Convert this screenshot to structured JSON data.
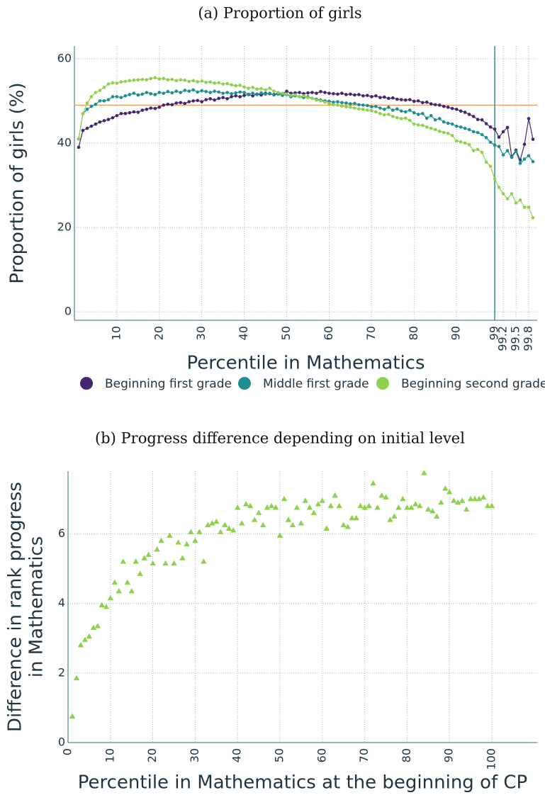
{
  "chart_data": [
    {
      "type": "line",
      "title": "(a) Proportion of girls",
      "xlabel": "Percentile in Mathematics",
      "ylabel": "Proportion of girls (%)",
      "x": [
        1,
        2,
        3,
        4,
        5,
        6,
        7,
        8,
        9,
        10,
        11,
        12,
        13,
        14,
        15,
        16,
        17,
        18,
        19,
        20,
        21,
        22,
        23,
        24,
        25,
        26,
        27,
        28,
        29,
        30,
        31,
        32,
        33,
        34,
        35,
        36,
        37,
        38,
        39,
        40,
        41,
        42,
        43,
        44,
        45,
        46,
        47,
        48,
        49,
        50,
        51,
        52,
        53,
        54,
        55,
        56,
        57,
        58,
        59,
        60,
        61,
        62,
        63,
        64,
        65,
        66,
        67,
        68,
        69,
        70,
        71,
        72,
        73,
        74,
        75,
        76,
        77,
        78,
        79,
        80,
        81,
        82,
        83,
        84,
        85,
        86,
        87,
        88,
        89,
        90,
        91,
        92,
        93,
        94,
        95,
        96,
        97,
        98,
        99,
        99.1,
        99.2,
        99.3,
        99.4,
        99.5,
        99.6,
        99.7,
        99.8,
        99.9
      ],
      "series": [
        {
          "name": "Beginning first grade",
          "color": "#46266e",
          "values": [
            39,
            43,
            43.5,
            44,
            44.5,
            45,
            45.3,
            45.6,
            46,
            46.5,
            47,
            47,
            47.2,
            47.4,
            47.3,
            47.8,
            48,
            48.3,
            48.2,
            48.5,
            49,
            49.2,
            49.1,
            49.5,
            49.6,
            49.4,
            49.8,
            50,
            50.1,
            49.8,
            50.3,
            50.5,
            50.2,
            50.6,
            50.8,
            50.5,
            51,
            51.2,
            51,
            51.3,
            51.5,
            51.2,
            51.6,
            51.4,
            51.8,
            51.7,
            51.5,
            51.9,
            51.6,
            52.3,
            51.8,
            51.9,
            52,
            51.7,
            51.9,
            52,
            51.8,
            52.2,
            52,
            51.8,
            51.7,
            51.6,
            51.8,
            51.5,
            51.6,
            51.4,
            51.5,
            51.2,
            51.3,
            51,
            51.2,
            50.8,
            50.9,
            50.6,
            50.7,
            50.4,
            50.3,
            50.2,
            50.3,
            49.9,
            50,
            49.6,
            49.7,
            49.3,
            49.1,
            49,
            48.7,
            48.5,
            48.2,
            48,
            47.6,
            47.3,
            46.8,
            46.3,
            45.6,
            45.5,
            44.6,
            43.8,
            43.3,
            41.4,
            42.7,
            43.7,
            36.8,
            38.3,
            36,
            39.7,
            45.8,
            40.9
          ]
        },
        {
          "name": "Middle first grade",
          "color": "#1e8f91",
          "values": [
            41,
            47,
            48,
            48.7,
            49.2,
            50,
            50,
            50.3,
            51,
            51,
            50.8,
            51.2,
            51.5,
            51.8,
            51.4,
            51.6,
            52,
            51.7,
            51.5,
            52,
            51.8,
            52.2,
            51.9,
            52.3,
            52,
            52.5,
            52.3,
            52.6,
            52.1,
            52.4,
            52.2,
            52,
            52.3,
            52.1,
            51.8,
            52,
            51.7,
            51.9,
            52.1,
            52,
            51.6,
            51.8,
            51.5,
            51.9,
            51.6,
            51.8,
            51.4,
            51.6,
            51.3,
            51.5,
            51,
            51.2,
            51,
            50.8,
            51,
            50.6,
            50.4,
            50.2,
            50,
            49.9,
            49.7,
            49.8,
            49.6,
            49.5,
            49.3,
            49.4,
            49.1,
            49,
            48.9,
            48.6,
            48.7,
            48.3,
            48,
            48.5,
            47.8,
            48.1,
            47.6,
            47.4,
            47.8,
            47.2,
            46.8,
            47,
            45.9,
            46.5,
            45.5,
            45.8,
            45,
            44.7,
            44.5,
            44,
            43.8,
            43.5,
            43.2,
            42.7,
            42.5,
            42,
            41.3,
            40.2,
            39.5,
            39.2,
            37.2,
            38.2,
            36.6,
            38,
            35.2,
            36.2,
            37,
            35.6
          ]
        },
        {
          "name": "Beginning second grade",
          "color": "#8fd14f",
          "values": [
            41,
            47,
            49.5,
            51,
            52,
            52.5,
            53.2,
            54,
            54.3,
            54.2,
            54.5,
            54.6,
            54.8,
            54.9,
            55,
            55.1,
            55,
            55.3,
            55.5,
            55.2,
            55.3,
            55,
            55.1,
            54.8,
            55,
            54.9,
            54.6,
            54.8,
            54.5,
            54.7,
            54.4,
            54.5,
            54.2,
            54.3,
            54,
            54.1,
            53.8,
            53.6,
            53.7,
            53.3,
            53,
            53.2,
            52.8,
            52.9,
            52.6,
            53,
            52.3,
            52,
            51.8,
            51.6,
            51.3,
            51.4,
            51,
            51.2,
            50.8,
            50.6,
            50.2,
            50,
            49.7,
            49.4,
            49.1,
            49,
            48.8,
            48.6,
            48.5,
            48.3,
            48.1,
            48,
            47.8,
            47.7,
            47.4,
            47,
            46.7,
            46.8,
            46.3,
            46,
            45.8,
            45.9,
            45.4,
            44.5,
            44.3,
            44.2,
            43.8,
            43.5,
            43.2,
            42.8,
            42.5,
            42.3,
            41.8,
            40.5,
            40.3,
            40,
            39.6,
            38.2,
            38.5,
            37.8,
            35.5,
            34.5,
            31.5,
            29.5,
            28,
            26.8,
            28,
            25.8,
            26.5,
            24.8,
            24.8,
            22.3
          ]
        }
      ],
      "xlim": [
        0,
        100
      ],
      "ylim": [
        -2,
        63
      ],
      "xticks": [
        10,
        20,
        30,
        40,
        50,
        60,
        70,
        80,
        90,
        99,
        99.2,
        99.5,
        99.8
      ],
      "yticks": [
        0,
        20,
        40,
        60
      ],
      "hline": 49,
      "hline_color": "#ef9a5a",
      "vline": 99,
      "vline_color": "#1f7a7c",
      "grid": true,
      "legend": "bottom"
    },
    {
      "type": "scatter",
      "title": "(b) Progress difference depending on initial level",
      "xlabel": "Percentile in Mathematics at the beginning of CP",
      "ylabel": [
        "Difference in rank progress",
        "in Mathematics"
      ],
      "marker": "triangle",
      "color": "#8fd14f",
      "x": [
        1,
        2,
        3,
        4,
        5,
        6,
        7,
        8,
        9,
        10,
        11,
        12,
        13,
        14,
        15,
        16,
        17,
        18,
        19,
        20,
        21,
        22,
        23,
        24,
        25,
        26,
        27,
        28,
        29,
        30,
        31,
        32,
        33,
        34,
        35,
        36,
        37,
        38,
        39,
        40,
        41,
        42,
        43,
        44,
        45,
        46,
        47,
        48,
        49,
        50,
        51,
        52,
        53,
        54,
        55,
        56,
        57,
        58,
        59,
        60,
        61,
        62,
        63,
        64,
        65,
        66,
        67,
        68,
        69,
        70,
        71,
        72,
        73,
        74,
        75,
        76,
        77,
        78,
        79,
        80,
        81,
        82,
        83,
        84,
        85,
        86,
        87,
        88,
        89,
        90,
        91,
        92,
        93,
        94,
        95,
        96,
        97,
        98,
        99,
        100
      ],
      "values": [
        0.75,
        1.85,
        2.8,
        2.95,
        3.05,
        3.3,
        3.35,
        3.95,
        3.9,
        4.15,
        4.6,
        4.35,
        5.2,
        4.6,
        4.35,
        5.2,
        4.85,
        5.3,
        5.4,
        5.15,
        5.55,
        5.8,
        5.15,
        5.95,
        5.15,
        5.75,
        5.3,
        5.7,
        6.05,
        5.8,
        6.05,
        5.2,
        6.25,
        6.3,
        6.35,
        6.05,
        6.25,
        6.15,
        6.1,
        6.75,
        6.3,
        6.85,
        6.8,
        6.4,
        6.6,
        6.25,
        6.75,
        6.8,
        6.75,
        5.95,
        7.0,
        6.4,
        6.25,
        6.75,
        6.3,
        6.95,
        6.75,
        6.6,
        6.85,
        6.95,
        6.15,
        6.8,
        7.1,
        6.8,
        6.25,
        6.2,
        6.45,
        6.45,
        6.8,
        6.75,
        6.8,
        7.45,
        6.75,
        7.1,
        7.05,
        6.4,
        6.5,
        6.75,
        7.0,
        6.75,
        6.75,
        6.85,
        6.8,
        7.75,
        6.7,
        6.65,
        6.5,
        6.9,
        7.3,
        7.2,
        6.95,
        6.9,
        6.95,
        6.7,
        7.0,
        7.0,
        7.0,
        7.05,
        6.8,
        6.8
      ],
      "xlim": [
        0,
        110.7
      ],
      "ylim": [
        0,
        7.8
      ],
      "xticks": [
        0,
        10,
        20,
        30,
        40,
        50,
        60,
        70,
        80,
        90,
        100
      ],
      "yticks": [
        0,
        2,
        4,
        6
      ],
      "grid": true
    }
  ]
}
